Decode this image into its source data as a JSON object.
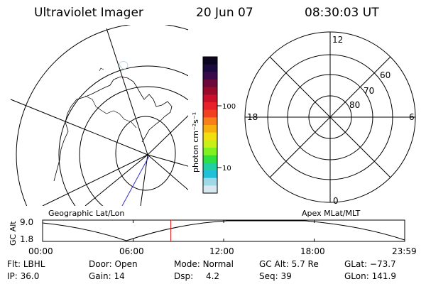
{
  "header": {
    "instrument": "Ultraviolet Imager",
    "date": "20 Jun 07",
    "time": "08:30:03 UT"
  },
  "colorbar": {
    "label": "photon cm⁻²s⁻¹",
    "ticks": [
      "100",
      "10"
    ],
    "colors": [
      "#0b0520",
      "#1a0a40",
      "#3a0a4a",
      "#6b0a3a",
      "#9a0a2a",
      "#c8102a",
      "#e8202a",
      "#f04020",
      "#f8801a",
      "#f8b010",
      "#f0e010",
      "#c8f018",
      "#80f020",
      "#30e040",
      "#20d0a0",
      "#20c0d8",
      "#a0d8e8",
      "#d8e8f0"
    ]
  },
  "geo_panel": {
    "label": "Geographic Lat/Lon"
  },
  "apex_panel": {
    "label": "Apex MLat/MLT",
    "mlt_labels": {
      "top": "12",
      "left": "18",
      "right": "6",
      "bottom": "0"
    },
    "lat_labels": [
      "60",
      "70",
      "80"
    ]
  },
  "timeline": {
    "axis_label": "GC Alt",
    "y_ticks": [
      "9.0",
      "1.8"
    ],
    "x_ticks": [
      "00:00",
      "06:00",
      "12:00",
      "18:00",
      "23:59"
    ],
    "marker_time": "08:30",
    "marker_color": "#e01010"
  },
  "status": {
    "row1": [
      {
        "label": "Flt:",
        "value": "LBHL"
      },
      {
        "label": "Door:",
        "value": "Open"
      },
      {
        "label": "Mode:",
        "value": "Normal"
      },
      {
        "label": "GC Alt:",
        "value": "5.7 Re"
      },
      {
        "label": "GLat:",
        "value": "−73.7"
      }
    ],
    "row2": [
      {
        "label": "IP:",
        "value": "36.0"
      },
      {
        "label": "Gain:",
        "value": "14"
      },
      {
        "label": "Dsp:",
        "value": "4.2"
      },
      {
        "label": "Seq:",
        "value": "39"
      },
      {
        "label": "GLon:",
        "value": "141.9"
      }
    ]
  }
}
